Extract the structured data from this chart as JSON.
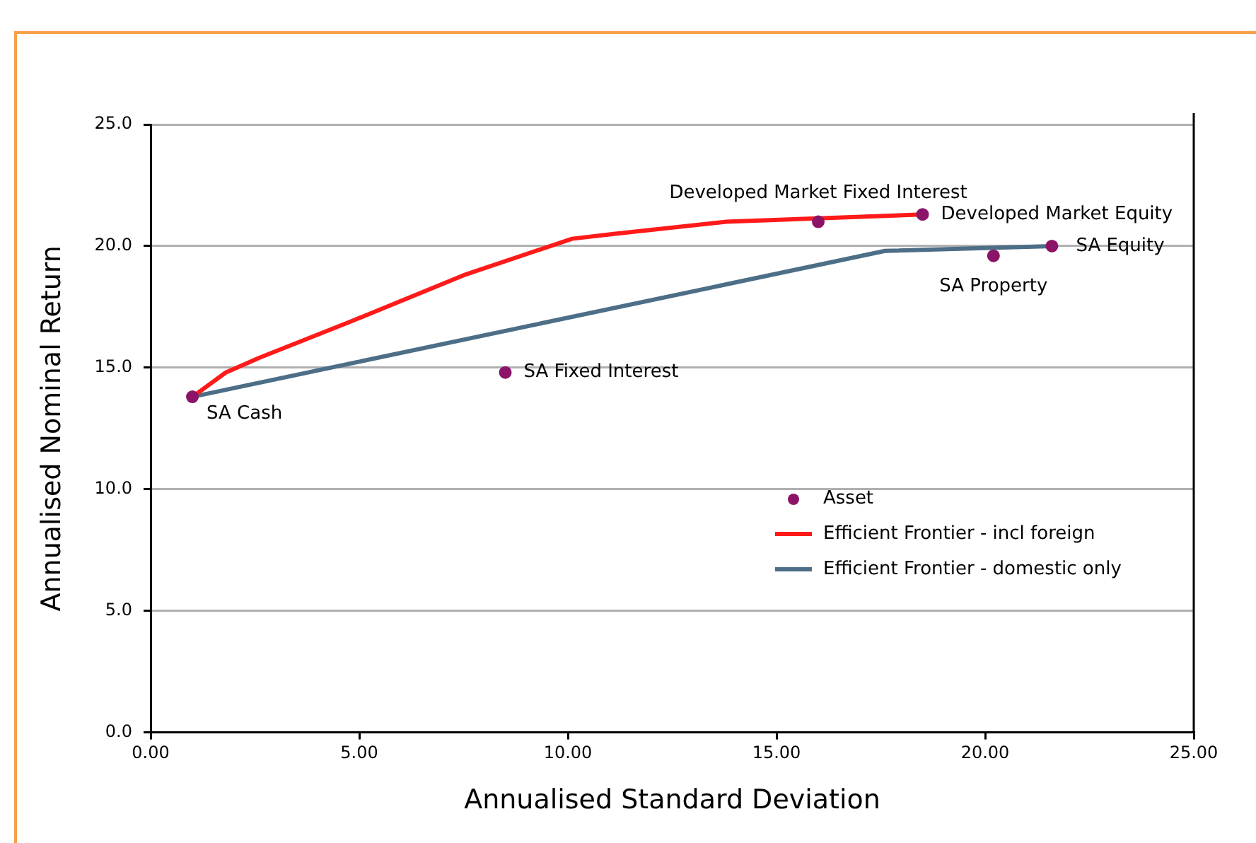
{
  "chart_data": {
    "type": "scatter",
    "xlabel": "Annualised Standard Deviation",
    "ylabel": "Annualised Nominal Return",
    "xlim": [
      0,
      25
    ],
    "ylim": [
      0,
      25
    ],
    "xticks": [
      {
        "value": 0,
        "label": "0.00"
      },
      {
        "value": 5,
        "label": "5.00"
      },
      {
        "value": 10,
        "label": "10.00"
      },
      {
        "value": 15,
        "label": "15.00"
      },
      {
        "value": 20,
        "label": "20.00"
      },
      {
        "value": 25,
        "label": "25.00"
      }
    ],
    "yticks": [
      {
        "value": 0,
        "label": "0.0"
      },
      {
        "value": 5,
        "label": "5.0"
      },
      {
        "value": 10,
        "label": "10.0"
      },
      {
        "value": 15,
        "label": "15.0"
      },
      {
        "value": 20,
        "label": "20.0"
      },
      {
        "value": 25,
        "label": "25.0"
      }
    ],
    "grid": "y",
    "legend": "right",
    "series": [
      {
        "name": "Asset",
        "marker": "circle",
        "color": "#8b1468",
        "x": [
          1.0,
          8.5,
          16.0,
          18.5,
          20.2,
          21.6
        ],
        "values": [
          13.8,
          14.8,
          21.0,
          21.3,
          19.6,
          20.0
        ]
      },
      {
        "name": "Efficient Frontier - incl foreign",
        "type": "line",
        "marker": "none",
        "color": "#ff1a1a",
        "x": [
          1.0,
          1.8,
          2.6,
          4.8,
          7.5,
          10.1,
          11.1,
          13.8,
          18.5
        ],
        "values": [
          13.8,
          14.8,
          15.4,
          16.9,
          18.8,
          20.3,
          20.5,
          21.0,
          21.3
        ]
      },
      {
        "name": "Efficient Frontier - domestic only",
        "type": "line",
        "marker": "none",
        "color": "#4d6e87",
        "x": [
          1.0,
          17.6,
          21.6
        ],
        "values": [
          13.8,
          19.8,
          20.0
        ]
      }
    ],
    "annotations": [
      {
        "text": "SA Cash",
        "x": 1.0,
        "y": 13.8
      },
      {
        "text": "SA Fixed Interest",
        "x": 8.5,
        "y": 14.8
      },
      {
        "text": "Developed Market Fixed Interest",
        "x": 16.0,
        "y": 21.0
      },
      {
        "text": "Developed Market Equity",
        "x": 18.5,
        "y": 21.3
      },
      {
        "text": "SA Property",
        "x": 20.2,
        "y": 19.6
      },
      {
        "text": "SA Equity",
        "x": 21.6,
        "y": 20.0
      }
    ]
  }
}
